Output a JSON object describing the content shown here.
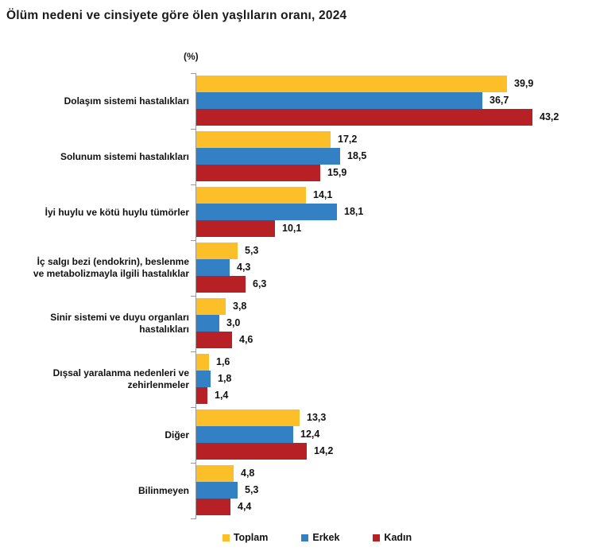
{
  "title": "Ölüm nedeni ve cinsiyete göre ölen yaşlıların oranı, 2024",
  "unit_label": "(%)",
  "colors": {
    "toplam": "#fcbf2a",
    "erkek": "#3380c4",
    "kadin": "#b72024",
    "axis": "#9b9b9b",
    "text": "#111111"
  },
  "legend": [
    {
      "label": "Toplam",
      "color": "#fcbf2a"
    },
    {
      "label": "Erkek",
      "color": "#3380c4"
    },
    {
      "label": "Kadın",
      "color": "#b72024"
    }
  ],
  "chart_data": {
    "type": "bar",
    "orientation": "horizontal",
    "title": "Ölüm nedeni ve cinsiyete göre ölen yaşlıların oranı, 2024",
    "xlabel": "(%)",
    "ylabel": "",
    "xlim": [
      0,
      51
    ],
    "grid": false,
    "legend_position": "bottom",
    "decimal_separator": ",",
    "categories": [
      "Dolaşım sistemi hastalıkları",
      "Solunum sistemi hastalıkları",
      "İyi huylu ve kötü huylu tümörler",
      "İç salgı bezi (endokrin), beslenme ve metabolizmayla ilgili hastalıklar",
      "Sinir sistemi ve duyu organları hastalıkları",
      "Dışsal yaralanma nedenleri ve zehirlenmeler",
      "Diğer",
      "Bilinmeyen"
    ],
    "category_lines": [
      [
        "Dolaşım sistemi hastalıkları"
      ],
      [
        "Solunum sistemi hastalıkları"
      ],
      [
        "İyi huylu ve kötü huylu tümörler"
      ],
      [
        "İç salgı bezi (endokrin), beslenme",
        "ve metabolizmayla ilgili hastalıklar"
      ],
      [
        "Sinir sistemi ve duyu organları",
        "hastalıkları"
      ],
      [
        "Dışsal yaralanma nedenleri ve",
        "zehirlenmeler"
      ],
      [
        "Diğer"
      ],
      [
        "Bilinmeyen"
      ]
    ],
    "series": [
      {
        "name": "Toplam",
        "color": "#fcbf2a",
        "values": [
          39.9,
          17.2,
          14.1,
          5.3,
          3.8,
          1.6,
          13.3,
          4.8
        ]
      },
      {
        "name": "Erkek",
        "color": "#3380c4",
        "values": [
          36.7,
          18.5,
          18.1,
          4.3,
          3.0,
          1.8,
          12.4,
          5.3
        ]
      },
      {
        "name": "Kadın",
        "color": "#b72024",
        "values": [
          43.2,
          15.9,
          10.1,
          6.3,
          4.6,
          1.4,
          14.2,
          4.4
        ]
      }
    ]
  }
}
